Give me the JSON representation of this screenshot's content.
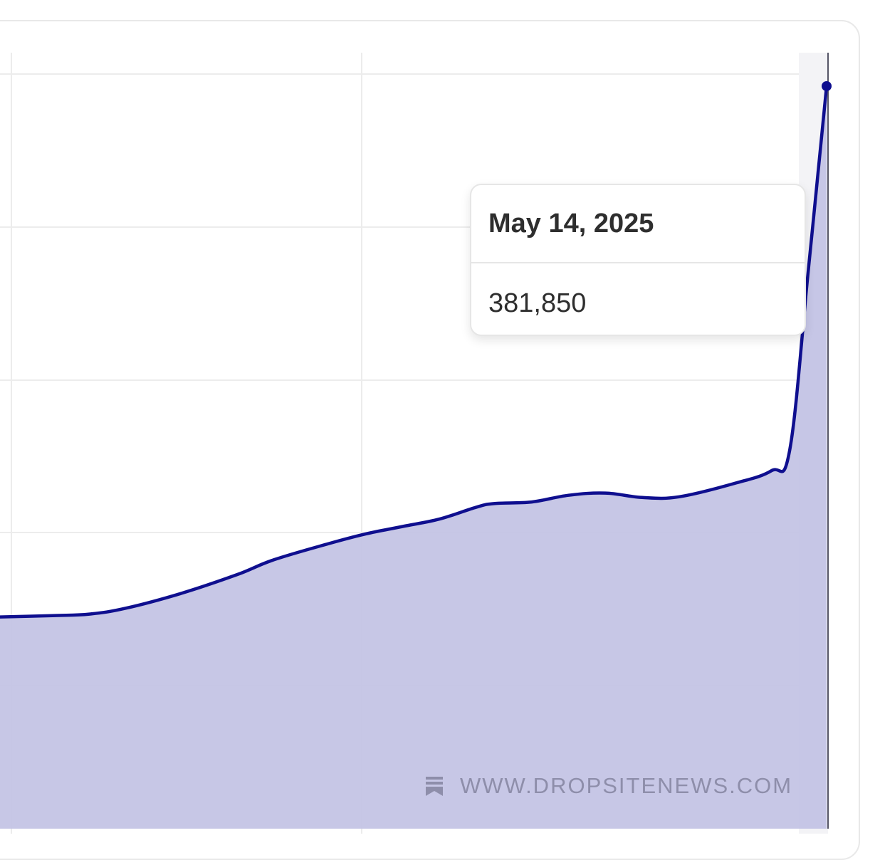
{
  "chart_data": {
    "type": "area",
    "title": "",
    "xlabel": "",
    "ylabel": "",
    "grid": true,
    "line_color": "#0f0f8f",
    "fill_color": "#c2c2e4",
    "points": [
      {
        "i": 0,
        "y": 0.285
      },
      {
        "i": 3,
        "y": 0.287
      },
      {
        "i": 5,
        "y": 0.289
      },
      {
        "i": 7,
        "y": 0.297
      },
      {
        "i": 10,
        "y": 0.317
      },
      {
        "i": 13,
        "y": 0.342
      },
      {
        "i": 15,
        "y": 0.362
      },
      {
        "i": 18,
        "y": 0.384
      },
      {
        "i": 20,
        "y": 0.397
      },
      {
        "i": 22,
        "y": 0.407
      },
      {
        "i": 24,
        "y": 0.417
      },
      {
        "i": 26,
        "y": 0.433
      },
      {
        "i": 27,
        "y": 0.438
      },
      {
        "i": 29,
        "y": 0.44
      },
      {
        "i": 31,
        "y": 0.449
      },
      {
        "i": 33,
        "y": 0.452
      },
      {
        "i": 35,
        "y": 0.446
      },
      {
        "i": 37,
        "y": 0.447
      },
      {
        "i": 40,
        "y": 0.465
      },
      {
        "i": 42,
        "y": 0.482
      },
      {
        "i": 43,
        "y": 0.51
      },
      {
        "i": 44,
        "y": 0.75
      },
      {
        "i": 45,
        "y": 1.0
      }
    ],
    "highlight": {
      "date": "May 14, 2025",
      "value": "381,850"
    }
  },
  "tooltip": {
    "date": "May 14, 2025",
    "value": "381,850"
  },
  "watermark": {
    "text": "WWW.DROPSITENEWS.COM",
    "icon": "bookmark-icon"
  }
}
